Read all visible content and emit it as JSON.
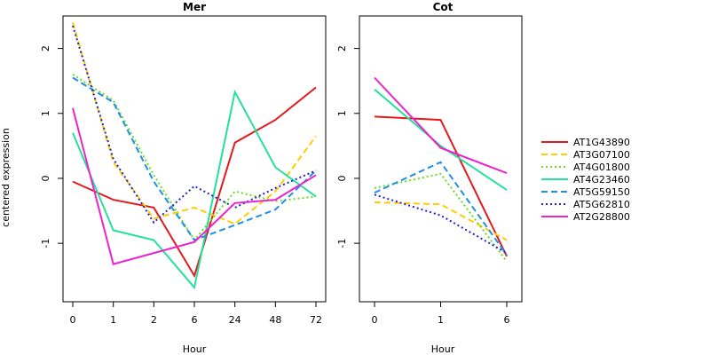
{
  "chart_data": {
    "type": "line",
    "ylabel": "centered expression",
    "ylim": [
      -1.9,
      2.5
    ],
    "yticks": [
      -1,
      0,
      1,
      2
    ],
    "grid": false,
    "legend_position": "right",
    "legend": [
      {
        "name": "AT1G43890",
        "color": "#e31a1c",
        "dash": "solid"
      },
      {
        "name": "AT3G07100",
        "color": "#ffcc00",
        "dash": "dashed"
      },
      {
        "name": "AT4G01800",
        "color": "#66dd22",
        "dash": "dotted"
      },
      {
        "name": "AT4G23460",
        "color": "#22e29a",
        "dash": "solid"
      },
      {
        "name": "AT5G59150",
        "color": "#1f8fe5",
        "dash": "dashed"
      },
      {
        "name": "AT5G62810",
        "color": "#2222cc",
        "dash": "dotted"
      },
      {
        "name": "AT2G28800",
        "color": "#ee22cc",
        "dash": "solid"
      }
    ],
    "panels": [
      {
        "title": "Mer",
        "xlabel": "Hour",
        "categories": [
          "0",
          "1",
          "2",
          "6",
          "24",
          "48",
          "72"
        ],
        "series": [
          {
            "name": "AT1G43890",
            "values": [
              -0.05,
              -0.33,
              -0.45,
              -1.5,
              0.55,
              0.9,
              1.4
            ]
          },
          {
            "name": "AT3G07100",
            "values": [
              2.4,
              0.25,
              -0.62,
              -0.45,
              -0.7,
              -0.2,
              0.65
            ]
          },
          {
            "name": "AT4G01800",
            "values": [
              1.6,
              1.2,
              0.05,
              -0.95,
              -0.2,
              -0.35,
              -0.28
            ]
          },
          {
            "name": "AT4G23460",
            "values": [
              0.7,
              -0.8,
              -0.95,
              -1.68,
              1.33,
              0.17,
              -0.28
            ]
          },
          {
            "name": "AT5G59150",
            "values": [
              1.55,
              1.17,
              -0.05,
              -0.95,
              -0.72,
              -0.48,
              0.12
            ]
          },
          {
            "name": "AT5G62810",
            "values": [
              2.35,
              0.3,
              -0.68,
              -0.12,
              -0.45,
              -0.15,
              0.12
            ]
          },
          {
            "name": "AT2G28800",
            "values": [
              1.08,
              -1.32,
              -1.15,
              -0.98,
              -0.38,
              -0.33,
              0.05
            ]
          }
        ]
      },
      {
        "title": "Cot",
        "xlabel": "Hour",
        "categories": [
          "0",
          "1",
          "6"
        ],
        "series": [
          {
            "name": "AT1G43890",
            "values": [
              0.95,
              0.9,
              -1.2
            ]
          },
          {
            "name": "AT3G07100",
            "values": [
              -0.37,
              -0.4,
              -0.95
            ]
          },
          {
            "name": "AT4G01800",
            "values": [
              -0.15,
              0.07,
              -1.28
            ]
          },
          {
            "name": "AT4G23460",
            "values": [
              1.37,
              0.5,
              -0.18
            ]
          },
          {
            "name": "AT5G59150",
            "values": [
              -0.22,
              0.25,
              -1.18
            ]
          },
          {
            "name": "AT5G62810",
            "values": [
              -0.25,
              -0.57,
              -1.15
            ]
          },
          {
            "name": "AT2G28800",
            "values": [
              1.55,
              0.47,
              0.08
            ]
          }
        ]
      }
    ]
  }
}
